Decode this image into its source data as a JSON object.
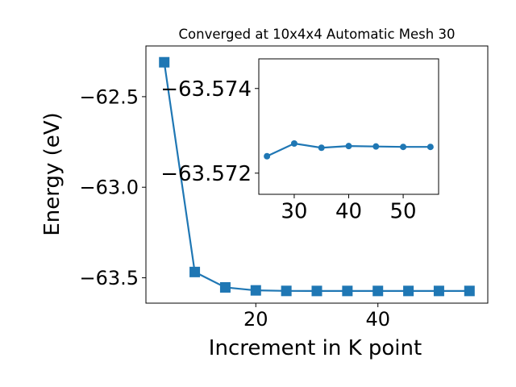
{
  "colors": {
    "series": "#1f77b4",
    "axis": "#000000",
    "background": "#ffffff"
  },
  "chart_data": [
    {
      "type": "line",
      "role": "main",
      "title": "Converged at 10x4x4 Automatic Mesh 30",
      "xlabel": "Increment in K point",
      "ylabel": "Energy (eV)",
      "marker": "square",
      "xlim": [
        2,
        58
      ],
      "ylim": [
        -63.64,
        -62.22
      ],
      "xticks": [
        20,
        40
      ],
      "xtick_labels": [
        "20",
        "40"
      ],
      "yticks": [
        -62.5,
        -63.0,
        -63.5
      ],
      "ytick_labels": [
        "−62.5",
        "−63.0",
        "−63.5"
      ],
      "grid": false,
      "x": [
        5,
        10,
        15,
        20,
        25,
        30,
        35,
        40,
        45,
        50,
        55
      ],
      "y": [
        -62.31,
        -63.468,
        -63.553,
        -63.5695,
        -63.5724,
        -63.5727,
        -63.5726,
        -63.5726,
        -63.5726,
        -63.5726,
        -63.5726
      ]
    },
    {
      "type": "line",
      "role": "inset",
      "title": "",
      "xlabel": "",
      "ylabel": "",
      "marker": "circle",
      "xlim": [
        23.5,
        56.5
      ],
      "ylim": [
        -63.5715,
        -63.5747
      ],
      "xticks": [
        30,
        40,
        50
      ],
      "xtick_labels": [
        "30",
        "40",
        "50"
      ],
      "yticks": [
        -63.574,
        -63.572
      ],
      "ytick_labels": [
        "−63.574",
        "−63.572"
      ],
      "grid": false,
      "x": [
        25,
        30,
        35,
        40,
        45,
        50,
        55
      ],
      "y": [
        -63.5724,
        -63.5727,
        -63.5726,
        -63.57264,
        -63.57263,
        -63.57262,
        -63.57262
      ]
    }
  ]
}
